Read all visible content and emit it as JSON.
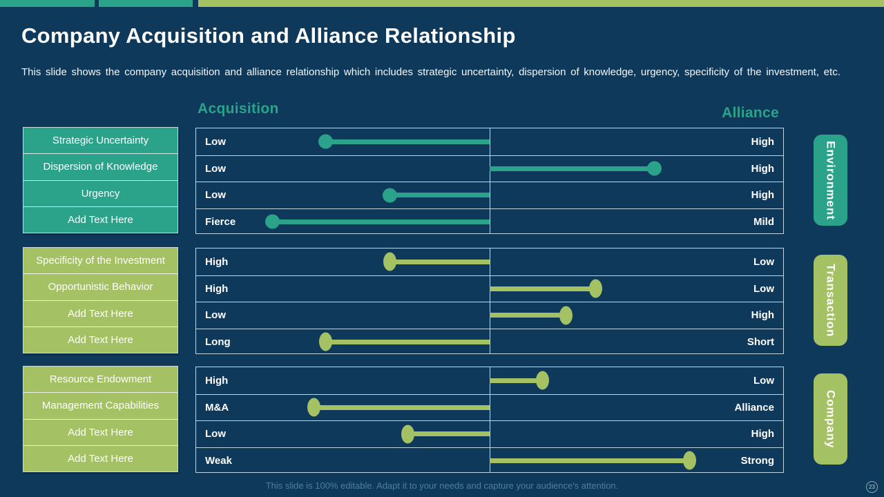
{
  "slide": {
    "title": "Company Acquisition and Alliance Relationship",
    "subtitle": "This slide shows the company acquisition and alliance relationship which includes strategic uncertainty,  dispersion of knowledge, urgency, specificity of the investment, etc.",
    "footer": "This slide is 100% editable. Adapt it to your needs and capture your audience's attention.",
    "page_number": "23"
  },
  "column_headers": {
    "left": "Acquisition",
    "right": "Alliance"
  },
  "colors": {
    "background": "#0e395b",
    "teal": "#2aa38a",
    "olive": "#a4c163",
    "table_border": "#c2d6e2",
    "footer_text": "#4d7f9e"
  },
  "groups": [
    {
      "name": "Environment",
      "scheme": "teal",
      "labels": [
        "Strategic Uncertainty",
        "Dispersion of Knowledge",
        "Urgency",
        "Add Text Here"
      ],
      "rows": [
        {
          "left": "Low",
          "right": "High",
          "value": 0.22
        },
        {
          "left": "Low",
          "right": "High",
          "value": 0.78
        },
        {
          "left": "Low",
          "right": "High",
          "value": 0.33
        },
        {
          "left": "Fierce",
          "right": "Mild",
          "value": 0.13
        }
      ]
    },
    {
      "name": "Transaction",
      "scheme": "olive",
      "labels": [
        "Specificity of the Investment",
        "Opportunistic Behavior",
        "Add Text Here",
        "Add Text Here"
      ],
      "rows": [
        {
          "left": "High",
          "right": "Low",
          "value": 0.33
        },
        {
          "left": "High",
          "right": "Low",
          "value": 0.68
        },
        {
          "left": "Low",
          "right": "High",
          "value": 0.63
        },
        {
          "left": "Long",
          "right": "Short",
          "value": 0.22
        }
      ]
    },
    {
      "name": "Company",
      "scheme": "olive",
      "labels": [
        "Resource Endowment",
        "Management Capabilities",
        "Add Text Here",
        "Add Text Here"
      ],
      "rows": [
        {
          "left": "High",
          "right": "Low",
          "value": 0.59
        },
        {
          "left": "M&A",
          "right": "Alliance",
          "value": 0.2
        },
        {
          "left": "Low",
          "right": "High",
          "value": 0.36
        },
        {
          "left": "Weak",
          "right": "Strong",
          "value": 0.84
        }
      ]
    }
  ]
}
